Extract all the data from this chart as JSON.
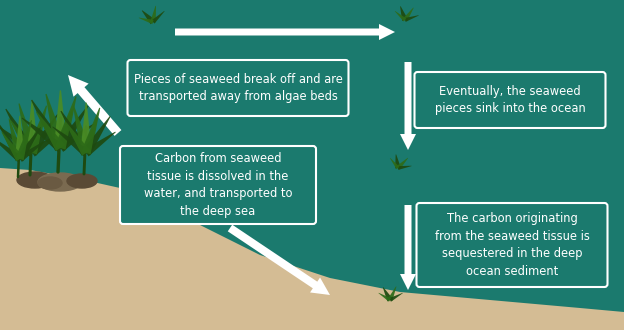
{
  "bg_color": "#1b7a6e",
  "sand_color": "#d4bc94",
  "box_edge_color": "#ffffff",
  "text_color": "#ffffff",
  "arrow_color": "#ffffff",
  "box1_text": "Pieces of seaweed break off and are\ntransported away from algae beds",
  "box2_text": "Eventually, the seaweed\npieces sink into the ocean",
  "box3_text": "Carbon from seaweed\ntissue is dissolved in the\nwater, and transported to\nthe deep sea",
  "box4_text": "The carbon originating\nfrom the seaweed tissue is\nsequestered in the deep\nocean sediment",
  "fig_width": 6.24,
  "fig_height": 3.3,
  "dpi": 100,
  "seaweed_dark": "#1e4a10",
  "seaweed_mid": "#2d6b18",
  "seaweed_light": "#4a8c25",
  "rock_dark": "#5a4a35",
  "rock_mid": "#7a6a50"
}
